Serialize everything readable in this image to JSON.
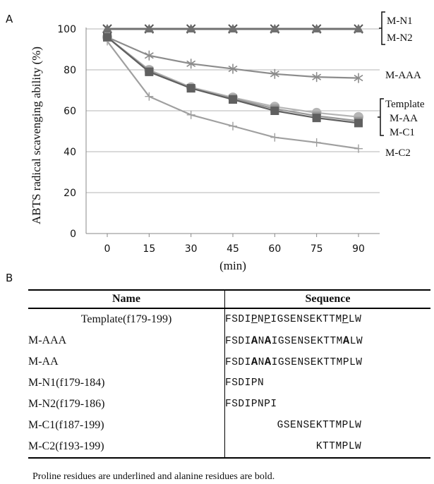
{
  "panel_a_label": "A",
  "panel_b_label": "B",
  "chart_data": {
    "type": "line",
    "xlabel": "(min)",
    "ylabel": "ABTS radical scavenging ability (%)",
    "x": [
      0,
      15,
      30,
      45,
      60,
      75,
      90
    ],
    "ylim": [
      0,
      100
    ],
    "yticks": [
      "0",
      "20",
      "40",
      "60",
      "80",
      "100"
    ],
    "grid": true,
    "series": [
      {
        "name": "M-N1",
        "values": [
          100,
          100,
          100,
          100,
          100,
          100,
          100
        ],
        "color": "#707070",
        "marker": "triangle"
      },
      {
        "name": "M-N2",
        "values": [
          100,
          100,
          100,
          100,
          100,
          100,
          100
        ],
        "color": "#555555",
        "marker": "x"
      },
      {
        "name": "M-AAA",
        "values": [
          96,
          87,
          83,
          80.5,
          78,
          76.5,
          76
        ],
        "color": "#8c8c8c",
        "marker": "asterisk"
      },
      {
        "name": "Template",
        "values": [
          96,
          79,
          71,
          65.5,
          60,
          56.5,
          54
        ],
        "color": "#606060",
        "marker": "square"
      },
      {
        "name": "M-AA",
        "values": [
          96,
          80,
          71.5,
          66.5,
          62,
          59,
          57
        ],
        "color": "#b5b5b5",
        "marker": "circle"
      },
      {
        "name": "M-C1",
        "values": [
          96,
          79.5,
          71,
          66,
          61,
          57.5,
          55
        ],
        "color": "#999999",
        "marker": "square"
      },
      {
        "name": "M-C2",
        "values": [
          94,
          67,
          58,
          52.5,
          47,
          44.5,
          41.5
        ],
        "color": "#a0a0a0",
        "marker": "plus"
      }
    ],
    "annotations": [
      "M-N1",
      "M-N2",
      "M-AAA",
      "Template",
      "M-AA",
      "M-C1",
      "M-C2"
    ]
  },
  "table": {
    "headers": [
      "Name",
      "Sequence"
    ],
    "rows": [
      {
        "name": "Template(f179-199)",
        "sequence": "FSDIPNPIGSENSEKTTMPLW"
      },
      {
        "name": "M-AAA",
        "sequence": "FSDIANAIGSENSEKTTMALW"
      },
      {
        "name": "M-AA",
        "sequence": "FSDIANAIGSENSEKTTMPLW"
      },
      {
        "name": "M-N1(f179-184)",
        "sequence": "FSDIPN"
      },
      {
        "name": "M-N2(f179-186)",
        "sequence": "FSDIPNPI"
      },
      {
        "name": "M-C1(f187-199)",
        "sequence": "GSENSEKTTMPLW"
      },
      {
        "name": "M-C2(f193-199)",
        "sequence": "KTTMPLW"
      }
    ]
  },
  "footnote": "Proline residues are underlined and alanine residues are bold."
}
